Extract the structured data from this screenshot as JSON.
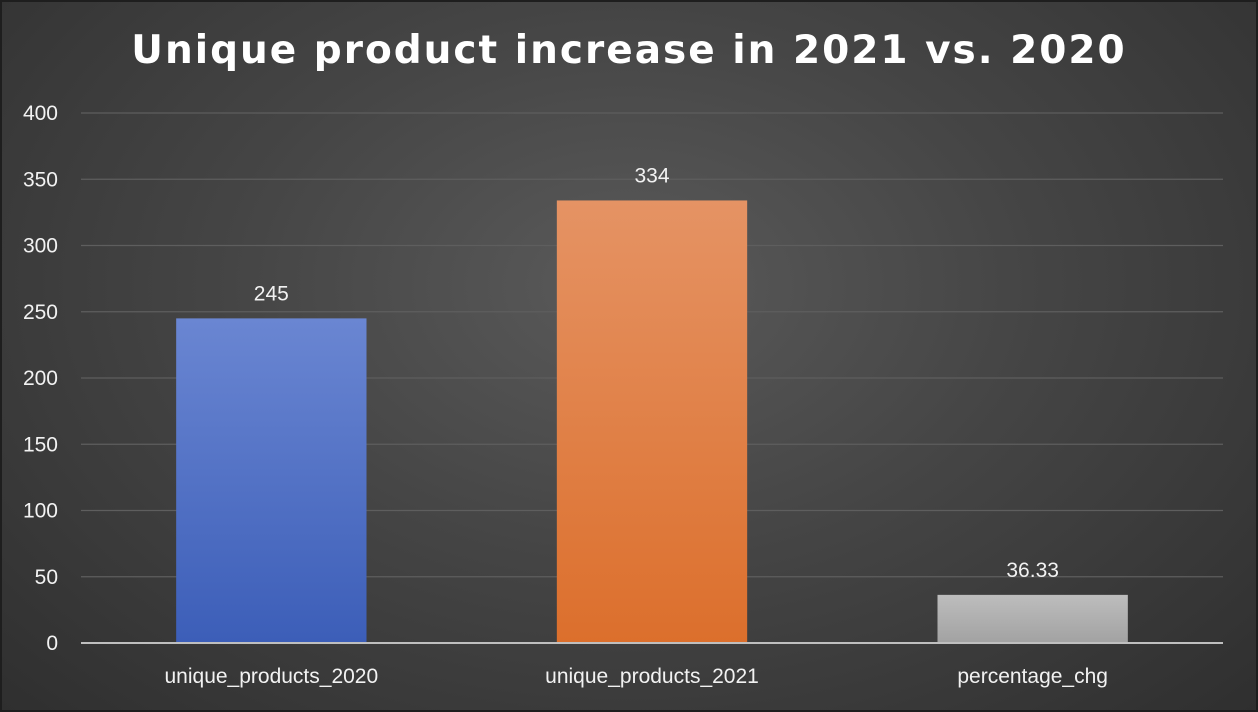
{
  "chart_data": {
    "type": "bar",
    "title": "Unique product increase in 2021 vs. 2020",
    "categories": [
      "unique_products_2020",
      "unique_products_2021",
      "percentage_chg"
    ],
    "values": [
      245,
      334,
      36.33
    ],
    "data_labels": [
      "245",
      "334",
      "36.33"
    ],
    "y_ticks": [
      0,
      50,
      100,
      150,
      200,
      250,
      300,
      350,
      400
    ],
    "ylim": [
      0,
      400
    ],
    "grid": true,
    "legend": "none",
    "bar_colors": [
      [
        "#6a86d2",
        "#3c5eb8"
      ],
      [
        "#e59364",
        "#dc6f2c"
      ],
      [
        "#bdbdbd",
        "#a2a2a2"
      ]
    ],
    "background_color": "#454545",
    "gridline_color": "#5e5e5e",
    "axis_color": "#bfbfbf"
  }
}
